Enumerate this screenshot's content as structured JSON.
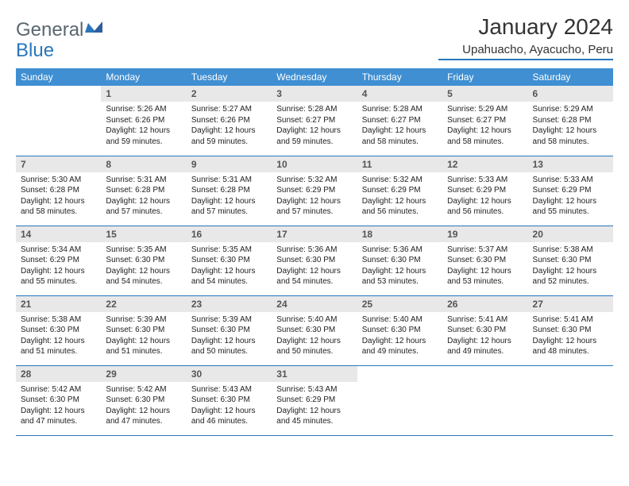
{
  "brand": {
    "part1": "General",
    "part2": "Blue"
  },
  "title": "January 2024",
  "location": "Upahuacho, Ayacucho, Peru",
  "colors": {
    "header_bg": "#3f8fd2",
    "accent": "#2976bb",
    "daynum_bg": "#e8e8e8",
    "text": "#222222",
    "logo_gray": "#5a6770"
  },
  "day_headers": [
    "Sunday",
    "Monday",
    "Tuesday",
    "Wednesday",
    "Thursday",
    "Friday",
    "Saturday"
  ],
  "weeks": [
    [
      {
        "n": "",
        "t": ""
      },
      {
        "n": "1",
        "t": "Sunrise: 5:26 AM\nSunset: 6:26 PM\nDaylight: 12 hours and 59 minutes."
      },
      {
        "n": "2",
        "t": "Sunrise: 5:27 AM\nSunset: 6:26 PM\nDaylight: 12 hours and 59 minutes."
      },
      {
        "n": "3",
        "t": "Sunrise: 5:28 AM\nSunset: 6:27 PM\nDaylight: 12 hours and 59 minutes."
      },
      {
        "n": "4",
        "t": "Sunrise: 5:28 AM\nSunset: 6:27 PM\nDaylight: 12 hours and 58 minutes."
      },
      {
        "n": "5",
        "t": "Sunrise: 5:29 AM\nSunset: 6:27 PM\nDaylight: 12 hours and 58 minutes."
      },
      {
        "n": "6",
        "t": "Sunrise: 5:29 AM\nSunset: 6:28 PM\nDaylight: 12 hours and 58 minutes."
      }
    ],
    [
      {
        "n": "7",
        "t": "Sunrise: 5:30 AM\nSunset: 6:28 PM\nDaylight: 12 hours and 58 minutes."
      },
      {
        "n": "8",
        "t": "Sunrise: 5:31 AM\nSunset: 6:28 PM\nDaylight: 12 hours and 57 minutes."
      },
      {
        "n": "9",
        "t": "Sunrise: 5:31 AM\nSunset: 6:28 PM\nDaylight: 12 hours and 57 minutes."
      },
      {
        "n": "10",
        "t": "Sunrise: 5:32 AM\nSunset: 6:29 PM\nDaylight: 12 hours and 57 minutes."
      },
      {
        "n": "11",
        "t": "Sunrise: 5:32 AM\nSunset: 6:29 PM\nDaylight: 12 hours and 56 minutes."
      },
      {
        "n": "12",
        "t": "Sunrise: 5:33 AM\nSunset: 6:29 PM\nDaylight: 12 hours and 56 minutes."
      },
      {
        "n": "13",
        "t": "Sunrise: 5:33 AM\nSunset: 6:29 PM\nDaylight: 12 hours and 55 minutes."
      }
    ],
    [
      {
        "n": "14",
        "t": "Sunrise: 5:34 AM\nSunset: 6:29 PM\nDaylight: 12 hours and 55 minutes."
      },
      {
        "n": "15",
        "t": "Sunrise: 5:35 AM\nSunset: 6:30 PM\nDaylight: 12 hours and 54 minutes."
      },
      {
        "n": "16",
        "t": "Sunrise: 5:35 AM\nSunset: 6:30 PM\nDaylight: 12 hours and 54 minutes."
      },
      {
        "n": "17",
        "t": "Sunrise: 5:36 AM\nSunset: 6:30 PM\nDaylight: 12 hours and 54 minutes."
      },
      {
        "n": "18",
        "t": "Sunrise: 5:36 AM\nSunset: 6:30 PM\nDaylight: 12 hours and 53 minutes."
      },
      {
        "n": "19",
        "t": "Sunrise: 5:37 AM\nSunset: 6:30 PM\nDaylight: 12 hours and 53 minutes."
      },
      {
        "n": "20",
        "t": "Sunrise: 5:38 AM\nSunset: 6:30 PM\nDaylight: 12 hours and 52 minutes."
      }
    ],
    [
      {
        "n": "21",
        "t": "Sunrise: 5:38 AM\nSunset: 6:30 PM\nDaylight: 12 hours and 51 minutes."
      },
      {
        "n": "22",
        "t": "Sunrise: 5:39 AM\nSunset: 6:30 PM\nDaylight: 12 hours and 51 minutes."
      },
      {
        "n": "23",
        "t": "Sunrise: 5:39 AM\nSunset: 6:30 PM\nDaylight: 12 hours and 50 minutes."
      },
      {
        "n": "24",
        "t": "Sunrise: 5:40 AM\nSunset: 6:30 PM\nDaylight: 12 hours and 50 minutes."
      },
      {
        "n": "25",
        "t": "Sunrise: 5:40 AM\nSunset: 6:30 PM\nDaylight: 12 hours and 49 minutes."
      },
      {
        "n": "26",
        "t": "Sunrise: 5:41 AM\nSunset: 6:30 PM\nDaylight: 12 hours and 49 minutes."
      },
      {
        "n": "27",
        "t": "Sunrise: 5:41 AM\nSunset: 6:30 PM\nDaylight: 12 hours and 48 minutes."
      }
    ],
    [
      {
        "n": "28",
        "t": "Sunrise: 5:42 AM\nSunset: 6:30 PM\nDaylight: 12 hours and 47 minutes."
      },
      {
        "n": "29",
        "t": "Sunrise: 5:42 AM\nSunset: 6:30 PM\nDaylight: 12 hours and 47 minutes."
      },
      {
        "n": "30",
        "t": "Sunrise: 5:43 AM\nSunset: 6:30 PM\nDaylight: 12 hours and 46 minutes."
      },
      {
        "n": "31",
        "t": "Sunrise: 5:43 AM\nSunset: 6:29 PM\nDaylight: 12 hours and 45 minutes."
      },
      {
        "n": "",
        "t": ""
      },
      {
        "n": "",
        "t": ""
      },
      {
        "n": "",
        "t": ""
      }
    ]
  ]
}
